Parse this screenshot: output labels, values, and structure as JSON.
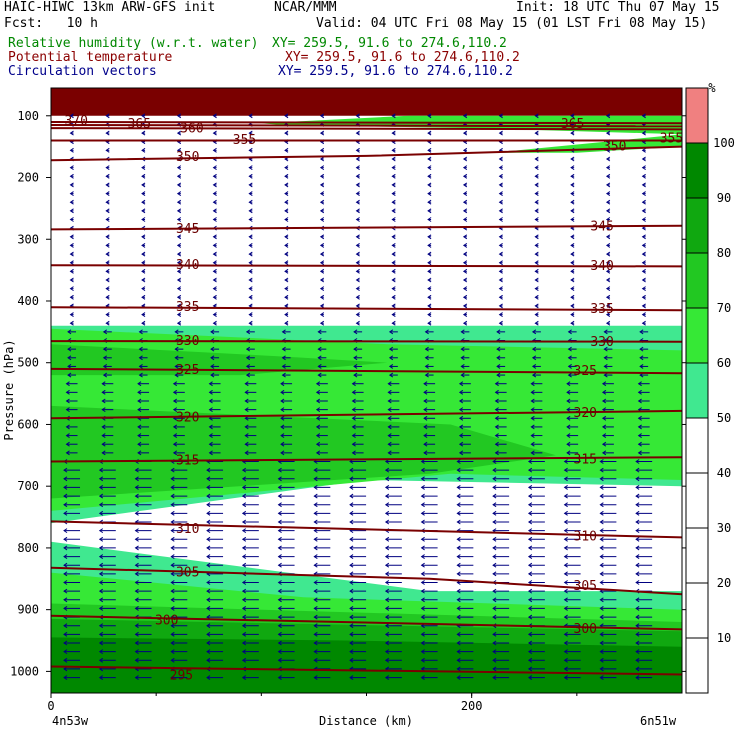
{
  "header": {
    "line1_left": "HAIC-HIWC 13km ARW-GFS init",
    "line1_mid": "NCAR/MMM",
    "line1_right": "Init: 18 UTC Thu 07 May 15",
    "line2_left": "Fcst:   10 h",
    "line2_right": "Valid: 04 UTC Fri 08 May 15 (01 LST Fri 08 May 15)",
    "field1_name": "Relative humidity (w.r.t. water)",
    "field1_xy": "XY= 259.5, 91.6 to 274.6,110.2",
    "field2_name": "Potential temperature",
    "field2_xy": "XY= 259.5, 91.6 to 274.6,110.2",
    "field3_name": "Circulation vectors",
    "field3_xy": "XY= 259.5, 91.6 to 274.6,110.2"
  },
  "colors": {
    "field1": "#008800",
    "field2": "#8b0000",
    "field3": "#00008b",
    "isentrope": "#7a0000",
    "vector": "#000080"
  },
  "chart_data": {
    "type": "heatmap",
    "xlabel": "Distance (km)",
    "ylabel": "Pressure (hPa)",
    "x_ticks": [
      "0",
      "200"
    ],
    "x_tick_values": [
      0,
      200
    ],
    "x_end_labels": [
      "4n53w",
      "6n51w"
    ],
    "xlim": [
      0,
      300
    ],
    "y_ticks": [
      "100",
      "200",
      "300",
      "400",
      "500",
      "600",
      "700",
      "800",
      "900",
      "1000"
    ],
    "y_tick_values": [
      100,
      200,
      300,
      400,
      500,
      600,
      700,
      800,
      900,
      1000
    ],
    "ylim": [
      1035,
      55
    ],
    "colorbar": {
      "unit": "%",
      "labels": [
        "10",
        "20",
        "30",
        "40",
        "50",
        "60",
        "70",
        "80",
        "90",
        "100"
      ],
      "levels": [
        0,
        10,
        20,
        30,
        40,
        50,
        60,
        70,
        80,
        90,
        100,
        110
      ],
      "colors": [
        "#ffffff",
        "#ffffff",
        "#ffffff",
        "#ffffff",
        "#ffffff",
        "#40e890",
        "#36e836",
        "#22c822",
        "#10a810",
        "#008800",
        "#f08080"
      ]
    },
    "rh_regions": [
      {
        "level": 100,
        "color": "#7a0000",
        "x": [
          0,
          0,
          300,
          300
        ],
        "p": [
          55,
          100,
          100,
          55
        ]
      },
      {
        "level": 60,
        "color": "#36e836",
        "x": [
          100,
          170,
          300,
          300,
          200,
          110
        ],
        "p": [
          112,
          100,
          100,
          130,
          120,
          115
        ]
      },
      {
        "level": 60,
        "color": "#36e836",
        "x": [
          210,
          300,
          300,
          250
        ],
        "p": [
          160,
          130,
          150,
          160
        ]
      },
      {
        "level": 50,
        "color": "#40e890",
        "x": [
          0,
          300,
          300,
          150,
          0
        ],
        "p": [
          440,
          440,
          700,
          690,
          760
        ]
      },
      {
        "level": 60,
        "color": "#36e836",
        "x": [
          0,
          160,
          300,
          300,
          190,
          0
        ],
        "p": [
          445,
          470,
          480,
          690,
          680,
          740
        ]
      },
      {
        "level": 70,
        "color": "#22c822",
        "x": [
          0,
          110,
          160,
          90,
          0
        ],
        "p": [
          470,
          490,
          500,
          520,
          520
        ]
      },
      {
        "level": 70,
        "color": "#22c822",
        "x": [
          0,
          190,
          240,
          180,
          0
        ],
        "p": [
          570,
          600,
          650,
          680,
          720
        ]
      },
      {
        "level": 50,
        "color": "#40e890",
        "x": [
          0,
          180,
          300,
          300,
          0
        ],
        "p": [
          790,
          870,
          870,
          1035,
          1035
        ]
      },
      {
        "level": 60,
        "color": "#36e836",
        "x": [
          0,
          120,
          300,
          300,
          0
        ],
        "p": [
          840,
          880,
          900,
          1035,
          1035
        ]
      },
      {
        "level": 70,
        "color": "#22c822",
        "x": [
          0,
          300,
          300,
          0
        ],
        "p": [
          890,
          920,
          1035,
          1035
        ]
      },
      {
        "level": 80,
        "color": "#10a810",
        "x": [
          0,
          300,
          300,
          0
        ],
        "p": [
          915,
          935,
          1035,
          1035
        ]
      },
      {
        "level": 90,
        "color": "#008800",
        "x": [
          0,
          140,
          300,
          300,
          0
        ],
        "p": [
          945,
          950,
          960,
          1035,
          1035
        ]
      }
    ],
    "isentropes": [
      {
        "theta": 370,
        "x": [
          0,
          300
        ],
        "p": [
          110,
          112
        ]
      },
      {
        "theta": 365,
        "x": [
          0,
          300
        ],
        "p": [
          115,
          117
        ]
      },
      {
        "theta": 360,
        "x": [
          0,
          300
        ],
        "p": [
          120,
          122
        ]
      },
      {
        "theta": 355,
        "x": [
          0,
          300
        ],
        "p": [
          140,
          140
        ]
      },
      {
        "theta": 350,
        "x": [
          0,
          150,
          300
        ],
        "p": [
          172,
          165,
          150
        ]
      },
      {
        "theta": 345,
        "x": [
          0,
          300
        ],
        "p": [
          284,
          278
        ]
      },
      {
        "theta": 340,
        "x": [
          0,
          300
        ],
        "p": [
          342,
          344
        ]
      },
      {
        "theta": 335,
        "x": [
          0,
          300
        ],
        "p": [
          410,
          415
        ]
      },
      {
        "theta": 330,
        "x": [
          0,
          300
        ],
        "p": [
          465,
          466
        ]
      },
      {
        "theta": 325,
        "x": [
          0,
          300
        ],
        "p": [
          510,
          517
        ]
      },
      {
        "theta": 320,
        "x": [
          0,
          300
        ],
        "p": [
          590,
          578
        ]
      },
      {
        "theta": 315,
        "x": [
          0,
          300
        ],
        "p": [
          660,
          653
        ]
      },
      {
        "theta": 310,
        "x": [
          0,
          300
        ],
        "p": [
          757,
          783
        ]
      },
      {
        "theta": 305,
        "x": [
          0,
          180,
          300
        ],
        "p": [
          832,
          850,
          875
        ]
      },
      {
        "theta": 300,
        "x": [
          0,
          300
        ],
        "p": [
          910,
          932
        ]
      },
      {
        "theta": 295,
        "x": [
          0,
          300
        ],
        "p": [
          992,
          1005
        ]
      }
    ],
    "isentrope_labels": [
      {
        "text": "370",
        "x": 12,
        "p": 107
      },
      {
        "text": "365",
        "x": 42,
        "p": 112
      },
      {
        "text": "360",
        "x": 67,
        "p": 119
      },
      {
        "text": "355",
        "x": 92,
        "p": 138
      },
      {
        "text": "350",
        "x": 65,
        "p": 165
      },
      {
        "text": "345",
        "x": 65,
        "p": 282
      },
      {
        "text": "340",
        "x": 65,
        "p": 340
      },
      {
        "text": "335",
        "x": 65,
        "p": 408
      },
      {
        "text": "330",
        "x": 65,
        "p": 463
      },
      {
        "text": "325",
        "x": 65,
        "p": 510
      },
      {
        "text": "320",
        "x": 65,
        "p": 587
      },
      {
        "text": "315",
        "x": 65,
        "p": 657
      },
      {
        "text": "310",
        "x": 65,
        "p": 768
      },
      {
        "text": "305",
        "x": 65,
        "p": 838
      },
      {
        "text": "300",
        "x": 55,
        "p": 916
      },
      {
        "text": "295",
        "x": 62,
        "p": 1005
      },
      {
        "text": "365",
        "x": 248,
        "p": 112
      },
      {
        "text": "350",
        "x": 268,
        "p": 148
      },
      {
        "text": "355",
        "x": 295,
        "p": 135
      },
      {
        "text": "345",
        "x": 262,
        "p": 278
      },
      {
        "text": "340",
        "x": 262,
        "p": 342
      },
      {
        "text": "335",
        "x": 262,
        "p": 411
      },
      {
        "text": "330",
        "x": 262,
        "p": 465
      },
      {
        "text": "325",
        "x": 254,
        "p": 512
      },
      {
        "text": "320",
        "x": 254,
        "p": 580
      },
      {
        "text": "315",
        "x": 254,
        "p": 655
      },
      {
        "text": "310",
        "x": 254,
        "p": 780
      },
      {
        "text": "305",
        "x": 254,
        "p": 860
      },
      {
        "text": "300",
        "x": 254,
        "p": 930
      }
    ]
  }
}
